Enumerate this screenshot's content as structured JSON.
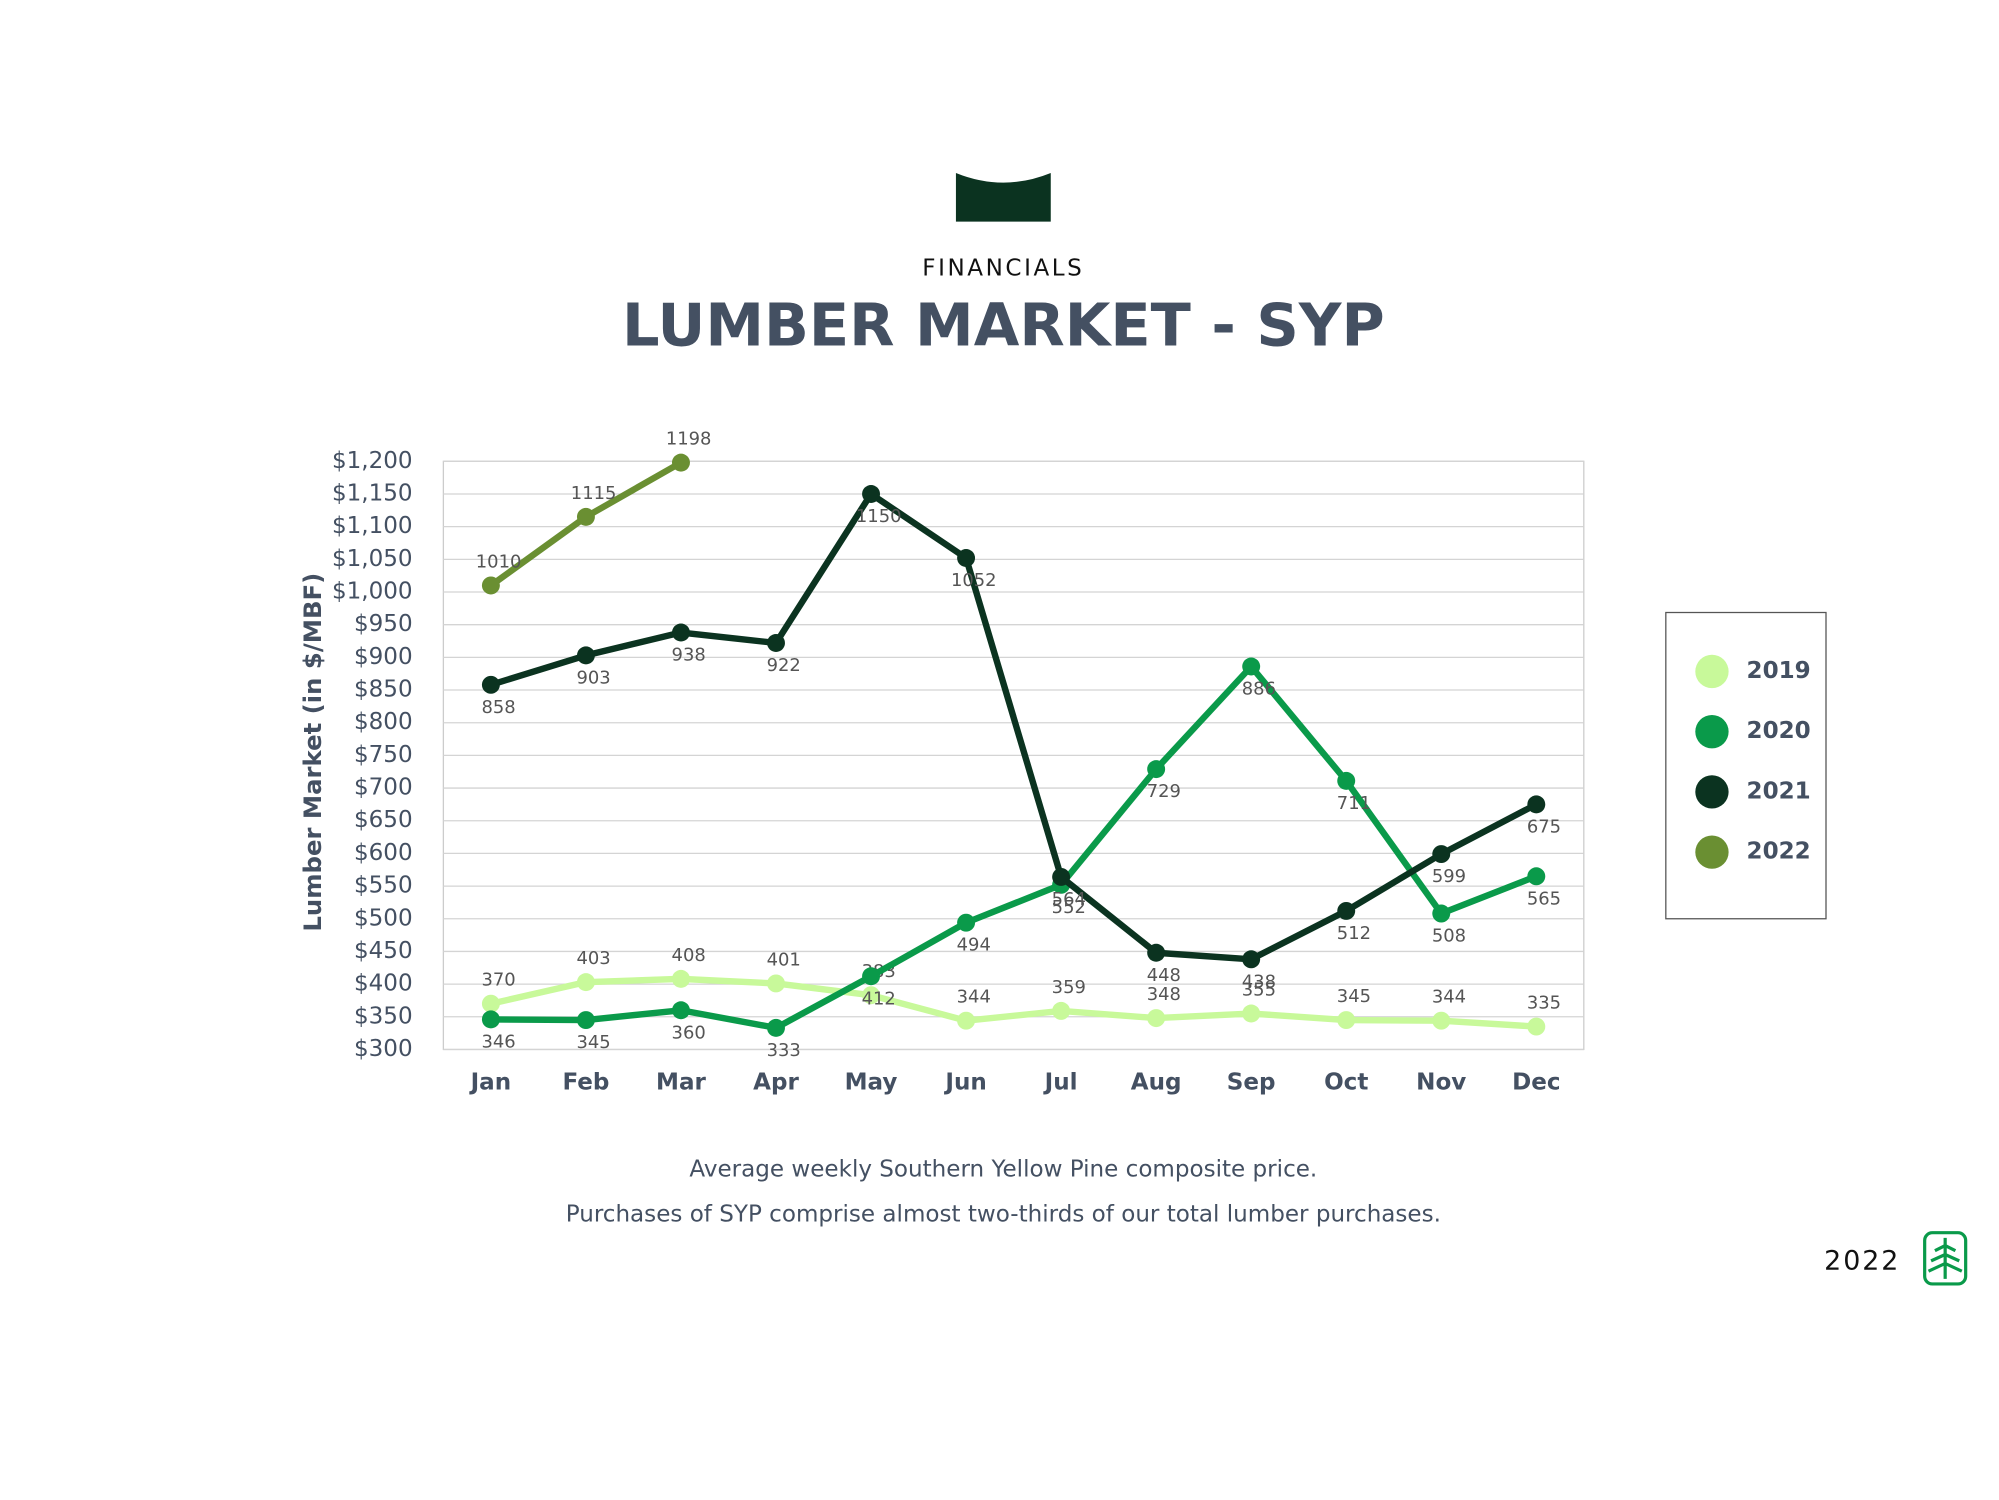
{
  "header": {
    "kicker": "FINANCIALS",
    "footer_year": "2022"
  },
  "chart_data": {
    "type": "line",
    "title": "LUMBER MARKET - SYP",
    "subtitle": [
      "Average weekly Southern Yellow Pine composite price.",
      "Purchases of SYP comprise almost two-thirds of our total lumber purchases."
    ],
    "y_label": "Lumber Market  (in $/MBF)",
    "categories": [
      "Jan",
      "Feb",
      "Mar",
      "Apr",
      "May",
      "Jun",
      "Jul",
      "Aug",
      "Sep",
      "Oct",
      "Nov",
      "Dec"
    ],
    "series": [
      {
        "name": "2019",
        "color": "#c8f99a",
        "values": [
          370,
          403,
          408,
          401,
          383,
          344,
          359,
          348,
          355,
          345,
          344,
          335
        ]
      },
      {
        "name": "2020",
        "color": "#0a9a4a",
        "values": [
          346,
          345,
          360,
          333,
          412,
          494,
          552,
          729,
          886,
          711,
          508,
          565
        ]
      },
      {
        "name": "2021",
        "color": "#0b3320",
        "values": [
          858,
          903,
          938,
          922,
          1150,
          1052,
          564,
          448,
          438,
          512,
          599,
          675
        ]
      },
      {
        "name": "2022",
        "color": "#6a8f32",
        "values": [
          1010,
          1115,
          1198,
          null,
          null,
          null,
          null,
          null,
          null,
          null,
          null,
          null
        ]
      }
    ],
    "ylim": [
      300,
      1200
    ],
    "yticks": [
      {
        "value": 300,
        "label": "$300"
      },
      {
        "value": 350,
        "label": "$350"
      },
      {
        "value": 400,
        "label": "$400"
      },
      {
        "value": 450,
        "label": "$450"
      },
      {
        "value": 500,
        "label": "$500"
      },
      {
        "value": 550,
        "label": "$550"
      },
      {
        "value": 600,
        "label": "$600"
      },
      {
        "value": 650,
        "label": "$650"
      },
      {
        "value": 700,
        "label": "$700"
      },
      {
        "value": 750,
        "label": "$750"
      },
      {
        "value": 800,
        "label": "$800"
      },
      {
        "value": 850,
        "label": "$850"
      },
      {
        "value": 900,
        "label": "$900"
      },
      {
        "value": 950,
        "label": "$950"
      },
      {
        "value": 1000,
        "label": "$1,000"
      },
      {
        "value": 1050,
        "label": "$1,050"
      },
      {
        "value": 1100,
        "label": "$1,100"
      },
      {
        "value": 1150,
        "label": "$1,150"
      },
      {
        "value": 1200,
        "label": "$1,200"
      }
    ],
    "grid": true,
    "legend": "right"
  }
}
